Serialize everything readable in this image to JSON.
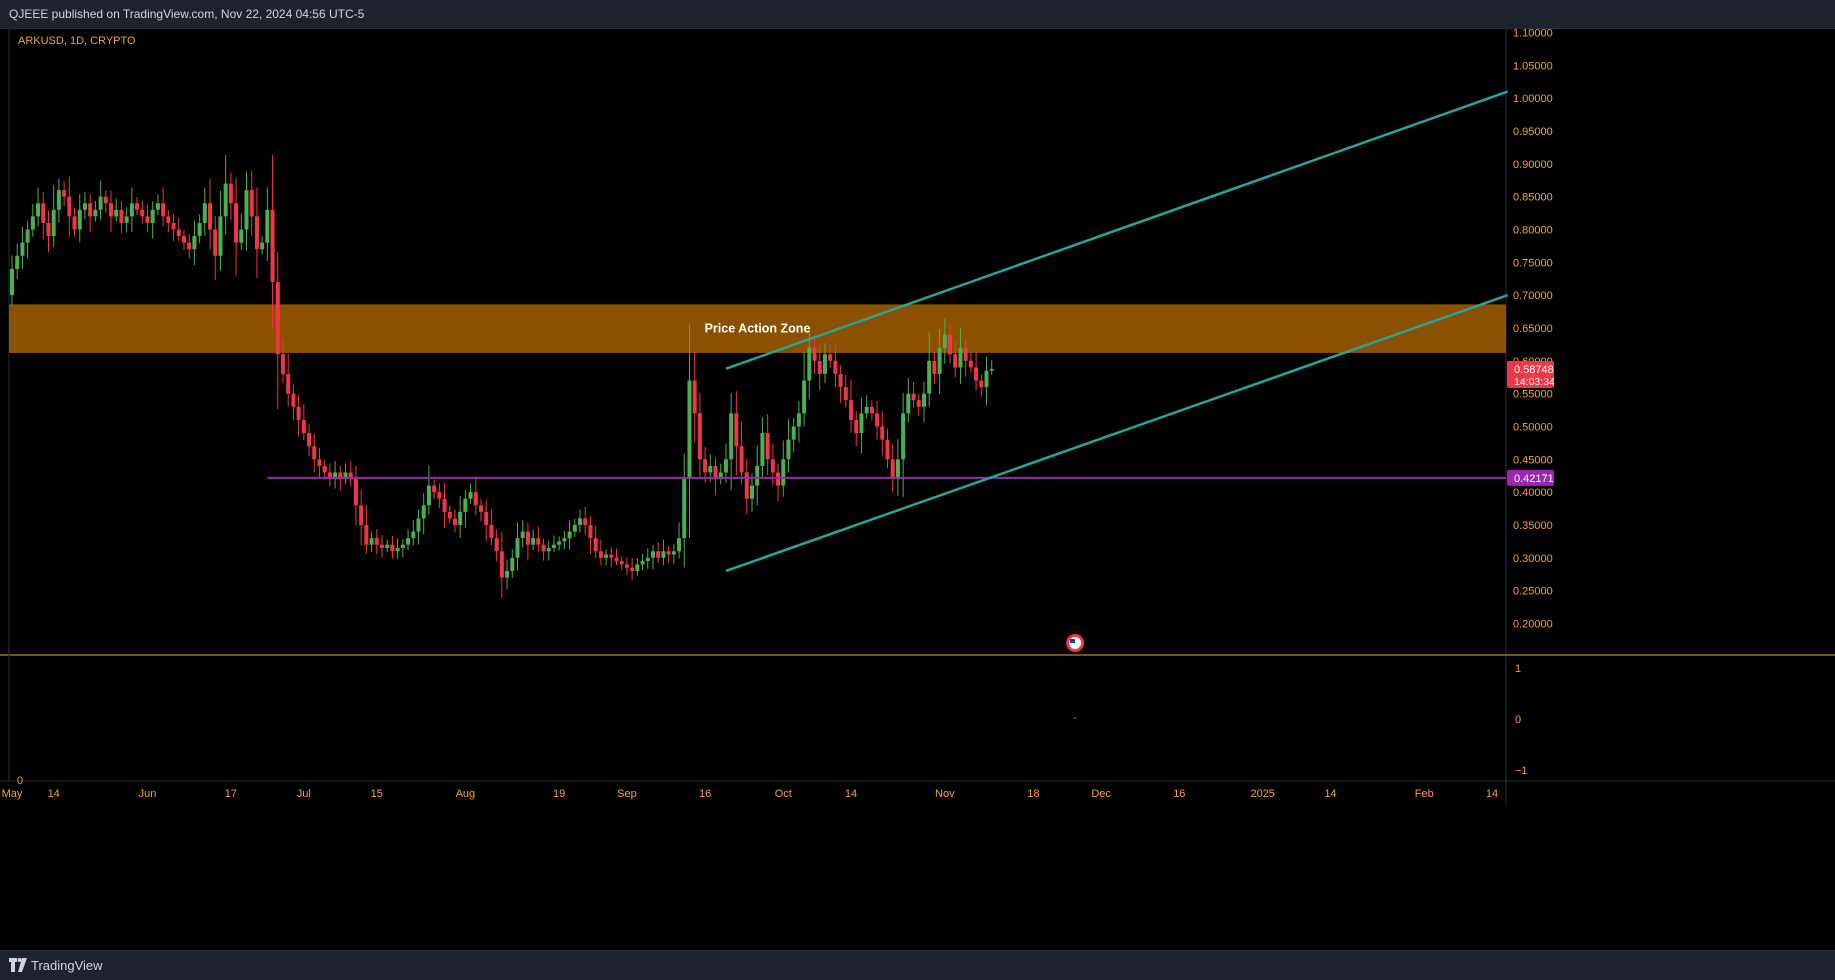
{
  "header": {
    "published_text": "QJEEE published on TradingView.com, Nov 22, 2024 04:56 UTC-5"
  },
  "footer": {
    "brand": "TradingView",
    "logo_icon": "tradingview-logo-icon"
  },
  "colors": {
    "background": "#000000",
    "up": "#4caf50",
    "down": "#f23645",
    "zone": "#8b5000",
    "channel": "#26a69a",
    "support": "#9c27b0",
    "accent": "#f5a623",
    "axis_text": "#f5a623"
  },
  "chart_data": {
    "type": "candlestick",
    "symbol_label": "ARKUSD, 1D, CRYPTO",
    "y_axis": {
      "min": 0.17,
      "max": 1.11,
      "ticks": [
        "1.10000",
        "1.05000",
        "1.00000",
        "0.95000",
        "0.90000",
        "0.85000",
        "0.80000",
        "0.75000",
        "0.70000",
        "0.65000",
        "0.60000",
        "0.55000",
        "0.50000",
        "0.45000",
        "0.40000",
        "0.35000",
        "0.30000",
        "0.25000",
        "0.20000"
      ]
    },
    "x_axis": {
      "start": "2024-05-06",
      "end": "2025-02-18",
      "ticks": [
        {
          "date": "2024-05-06",
          "label": "May"
        },
        {
          "date": "2024-05-14",
          "label": "14"
        },
        {
          "date": "2024-06-01",
          "label": "Jun"
        },
        {
          "date": "2024-06-17",
          "label": "17"
        },
        {
          "date": "2024-07-01",
          "label": "Jul"
        },
        {
          "date": "2024-07-15",
          "label": "15"
        },
        {
          "date": "2024-08-01",
          "label": "Aug"
        },
        {
          "date": "2024-08-19",
          "label": "19"
        },
        {
          "date": "2024-09-01",
          "label": "Sep"
        },
        {
          "date": "2024-09-16",
          "label": "16"
        },
        {
          "date": "2024-10-01",
          "label": "Oct"
        },
        {
          "date": "2024-10-14",
          "label": "14"
        },
        {
          "date": "2024-11-01",
          "label": "Nov"
        },
        {
          "date": "2024-11-18",
          "label": "18"
        },
        {
          "date": "2024-12-01",
          "label": "Dec"
        },
        {
          "date": "2024-12-16",
          "label": "16"
        },
        {
          "date": "2025-01-01",
          "label": "2025"
        },
        {
          "date": "2025-01-14",
          "label": "14"
        },
        {
          "date": "2025-02-01",
          "label": "Feb"
        },
        {
          "date": "2025-02-14",
          "label": "14"
        }
      ]
    },
    "zone": {
      "label": "Price Action Zone",
      "top": 0.686,
      "bottom": 0.612
    },
    "support_line": {
      "value": 0.42171,
      "label": "0.42171",
      "start": "2024-06-24"
    },
    "channel_upper": {
      "start": [
        "2024-09-20",
        0.588
      ],
      "end": [
        "2025-02-17",
        1.01
      ]
    },
    "channel_lower": {
      "start": [
        "2024-09-20",
        0.28
      ],
      "end": [
        "2025-02-17",
        0.7
      ]
    },
    "last_price": {
      "value": 0.58748,
      "label": "0.58748",
      "countdown": "14:03:34"
    },
    "indicator_pane": {
      "label": "0",
      "ticks": [
        "1",
        "0",
        "−1"
      ],
      "marker": "-"
    },
    "events_icon": "us-flag-icon",
    "candles_close": [
      0.74,
      0.76,
      0.78,
      0.8,
      0.82,
      0.84,
      0.81,
      0.79,
      0.83,
      0.86,
      0.85,
      0.82,
      0.8,
      0.83,
      0.84,
      0.82,
      0.83,
      0.85,
      0.84,
      0.82,
      0.83,
      0.81,
      0.82,
      0.84,
      0.83,
      0.82,
      0.81,
      0.83,
      0.84,
      0.82,
      0.81,
      0.8,
      0.79,
      0.78,
      0.77,
      0.79,
      0.81,
      0.84,
      0.8,
      0.76,
      0.82,
      0.87,
      0.84,
      0.78,
      0.8,
      0.86,
      0.82,
      0.77,
      0.78,
      0.83,
      0.72,
      0.61,
      0.58,
      0.55,
      0.53,
      0.51,
      0.49,
      0.47,
      0.45,
      0.44,
      0.43,
      0.42,
      0.43,
      0.42,
      0.43,
      0.42,
      0.38,
      0.35,
      0.32,
      0.33,
      0.32,
      0.315,
      0.32,
      0.31,
      0.315,
      0.32,
      0.33,
      0.34,
      0.36,
      0.38,
      0.41,
      0.4,
      0.39,
      0.37,
      0.36,
      0.35,
      0.37,
      0.39,
      0.4,
      0.38,
      0.37,
      0.35,
      0.33,
      0.31,
      0.27,
      0.28,
      0.3,
      0.33,
      0.34,
      0.32,
      0.33,
      0.32,
      0.31,
      0.315,
      0.32,
      0.325,
      0.33,
      0.34,
      0.35,
      0.36,
      0.35,
      0.33,
      0.31,
      0.3,
      0.305,
      0.3,
      0.295,
      0.29,
      0.285,
      0.28,
      0.29,
      0.295,
      0.3,
      0.31,
      0.3,
      0.31,
      0.305,
      0.31,
      0.33,
      0.42,
      0.57,
      0.52,
      0.45,
      0.43,
      0.44,
      0.42,
      0.43,
      0.45,
      0.52,
      0.47,
      0.43,
      0.39,
      0.41,
      0.44,
      0.49,
      0.45,
      0.43,
      0.41,
      0.45,
      0.48,
      0.5,
      0.52,
      0.57,
      0.62,
      0.6,
      0.58,
      0.61,
      0.6,
      0.58,
      0.56,
      0.54,
      0.51,
      0.49,
      0.52,
      0.53,
      0.52,
      0.5,
      0.48,
      0.45,
      0.42,
      0.45,
      0.52,
      0.55,
      0.54,
      0.53,
      0.55,
      0.6,
      0.58,
      0.62,
      0.64,
      0.61,
      0.59,
      0.62,
      0.6,
      0.59,
      0.57,
      0.56,
      0.585,
      0.58748
    ]
  }
}
